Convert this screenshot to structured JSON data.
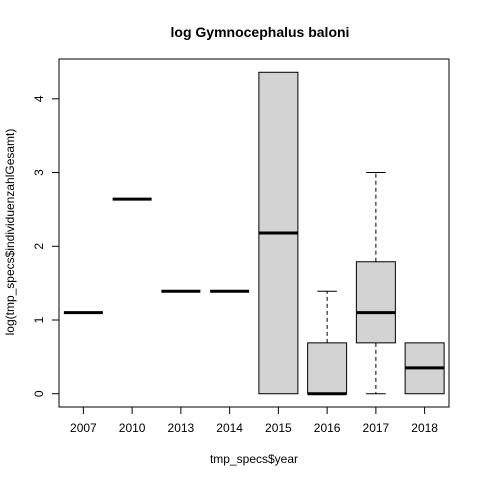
{
  "chart_data": {
    "type": "boxplot",
    "title": "log Gymnocephalus baloni",
    "xlabel": "tmp_specs$year",
    "ylabel": "log(tmp_specs$individuenzahlGesamt)",
    "ylim": [
      -0.18,
      4.54
    ],
    "y_ticks": [
      0,
      1,
      2,
      3,
      4
    ],
    "categories": [
      "2007",
      "2010",
      "2013",
      "2014",
      "2015",
      "2016",
      "2017",
      "2018"
    ],
    "boxes": [
      {
        "min": 1.1,
        "q1": 1.1,
        "median": 1.1,
        "q3": 1.1,
        "max": 1.1
      },
      {
        "min": 2.64,
        "q1": 2.64,
        "median": 2.64,
        "q3": 2.64,
        "max": 2.64
      },
      {
        "min": 1.39,
        "q1": 1.39,
        "median": 1.39,
        "q3": 1.39,
        "max": 1.39
      },
      {
        "min": 1.39,
        "q1": 1.39,
        "median": 1.39,
        "q3": 1.39,
        "max": 1.39
      },
      {
        "min": 0,
        "q1": 0,
        "median": 2.18,
        "q3": 4.36,
        "max": 4.36
      },
      {
        "min": 0,
        "q1": 0,
        "median": 0,
        "q3": 0.69,
        "max": 1.39
      },
      {
        "min": 0,
        "q1": 0.69,
        "median": 1.1,
        "q3": 1.79,
        "max": 3.0
      },
      {
        "min": 0,
        "q1": 0,
        "median": 0.35,
        "q3": 0.69,
        "max": 0.69
      }
    ],
    "box_fill": "#d3d3d3",
    "line_color": "#000000"
  }
}
